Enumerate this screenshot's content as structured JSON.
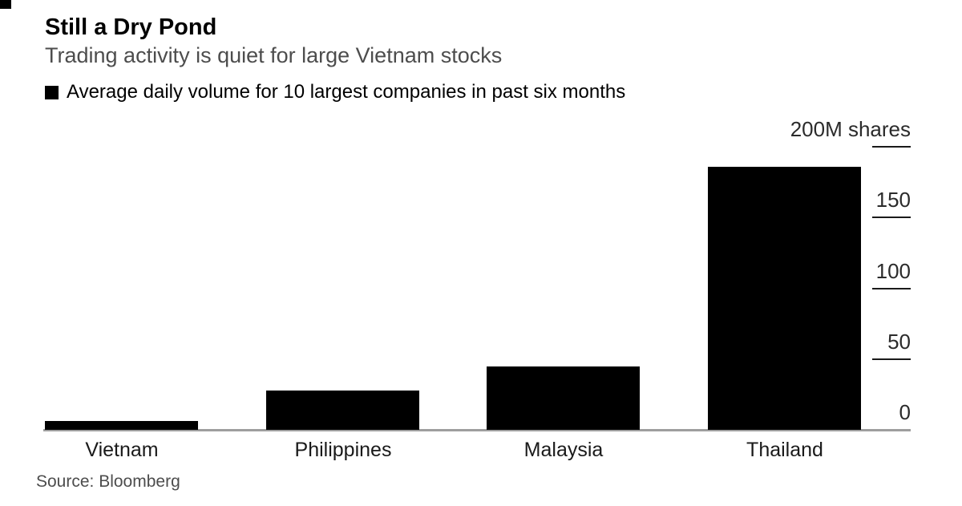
{
  "header": {
    "title": "Still a Dry Pond",
    "subtitle": "Trading activity is quiet for large Vietnam stocks"
  },
  "legend": {
    "label": "Average daily volume for 10 largest companies in past six months",
    "marker_color": "#000000"
  },
  "chart_data": {
    "type": "bar",
    "title": "Still a Dry Pond",
    "subtitle": "Trading activity is quiet for large Vietnam stocks",
    "series_name": "Average daily volume for 10 largest companies in past six months",
    "categories": [
      "Vietnam",
      "Philippines",
      "Malaysia",
      "Thailand"
    ],
    "values": [
      6.5,
      27.5,
      44.5,
      186
    ],
    "unit": "M shares",
    "ylim": [
      0,
      200
    ],
    "yticks": [
      0,
      50,
      100,
      150,
      200
    ],
    "ytick_labels": [
      "0",
      "50",
      "100",
      "150",
      "200M shares"
    ],
    "axis_side": "right",
    "bar_color": "#000000",
    "baseline_color": "#9e9e9e",
    "grid": false,
    "legend_position": "top-left"
  },
  "source": {
    "text": "Source: Bloomberg"
  }
}
